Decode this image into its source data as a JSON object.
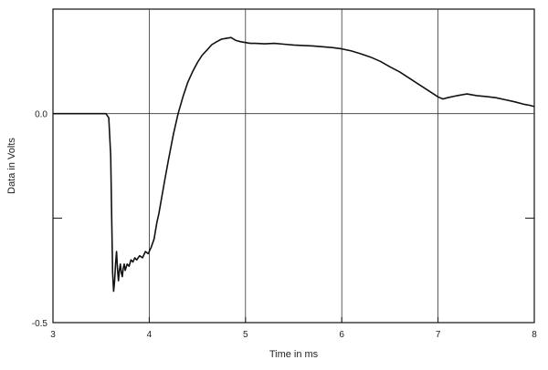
{
  "chart_data": {
    "type": "line",
    "title": "",
    "xlabel": "Time in ms",
    "ylabel": "Data in Volts",
    "xlim": [
      3,
      8
    ],
    "ylim": [
      -0.5,
      0.25
    ],
    "x_ticks": [
      3,
      4,
      5,
      6,
      7,
      8
    ],
    "x_tick_labels": [
      "3",
      "4",
      "5",
      "6",
      "7",
      "8"
    ],
    "y_ticks": [
      -0.5,
      0.0
    ],
    "y_tick_labels": [
      "-0.5",
      "0.0"
    ],
    "y_grid": [
      0.0
    ],
    "x_grid": [
      4,
      5,
      6,
      7
    ],
    "grid": true,
    "line_color": "#111111",
    "series": [
      {
        "x": [
          3.0,
          3.2,
          3.4,
          3.55,
          3.58,
          3.6,
          3.61,
          3.62,
          3.63,
          3.64,
          3.65,
          3.66,
          3.67,
          3.68,
          3.69,
          3.7,
          3.71,
          3.72,
          3.73,
          3.74,
          3.75,
          3.77,
          3.79,
          3.81,
          3.83,
          3.85,
          3.87,
          3.9,
          3.93,
          3.96,
          3.99,
          4.02,
          4.05,
          4.08,
          4.1,
          4.13,
          4.16,
          4.2,
          4.25,
          4.3,
          4.35,
          4.4,
          4.45,
          4.5,
          4.55,
          4.6,
          4.65,
          4.7,
          4.75,
          4.8,
          4.85,
          4.9,
          4.95,
          5.0,
          5.05,
          5.1,
          5.2,
          5.3,
          5.4,
          5.5,
          5.6,
          5.7,
          5.8,
          5.9,
          6.0,
          6.1,
          6.2,
          6.3,
          6.4,
          6.5,
          6.6,
          6.7,
          6.8,
          6.9,
          7.0,
          7.05,
          7.1,
          7.2,
          7.3,
          7.4,
          7.5,
          7.6,
          7.7,
          7.8,
          7.9,
          7.95,
          8.0
        ],
        "y": [
          0.0,
          0.0,
          0.0,
          0.0,
          -0.01,
          -0.1,
          -0.25,
          -0.38,
          -0.425,
          -0.4,
          -0.36,
          -0.33,
          -0.37,
          -0.4,
          -0.375,
          -0.36,
          -0.38,
          -0.39,
          -0.37,
          -0.36,
          -0.375,
          -0.36,
          -0.365,
          -0.35,
          -0.355,
          -0.345,
          -0.35,
          -0.34,
          -0.345,
          -0.33,
          -0.335,
          -0.32,
          -0.3,
          -0.26,
          -0.24,
          -0.2,
          -0.16,
          -0.11,
          -0.05,
          0.0,
          0.04,
          0.075,
          0.1,
          0.122,
          0.14,
          0.152,
          0.165,
          0.172,
          0.178,
          0.18,
          0.182,
          0.175,
          0.172,
          0.17,
          0.168,
          0.168,
          0.167,
          0.168,
          0.166,
          0.164,
          0.163,
          0.162,
          0.16,
          0.158,
          0.155,
          0.15,
          0.143,
          0.135,
          0.125,
          0.112,
          0.1,
          0.085,
          0.07,
          0.055,
          0.04,
          0.035,
          0.038,
          0.043,
          0.047,
          0.043,
          0.041,
          0.038,
          0.033,
          0.028,
          0.022,
          0.02,
          0.017
        ]
      }
    ]
  }
}
